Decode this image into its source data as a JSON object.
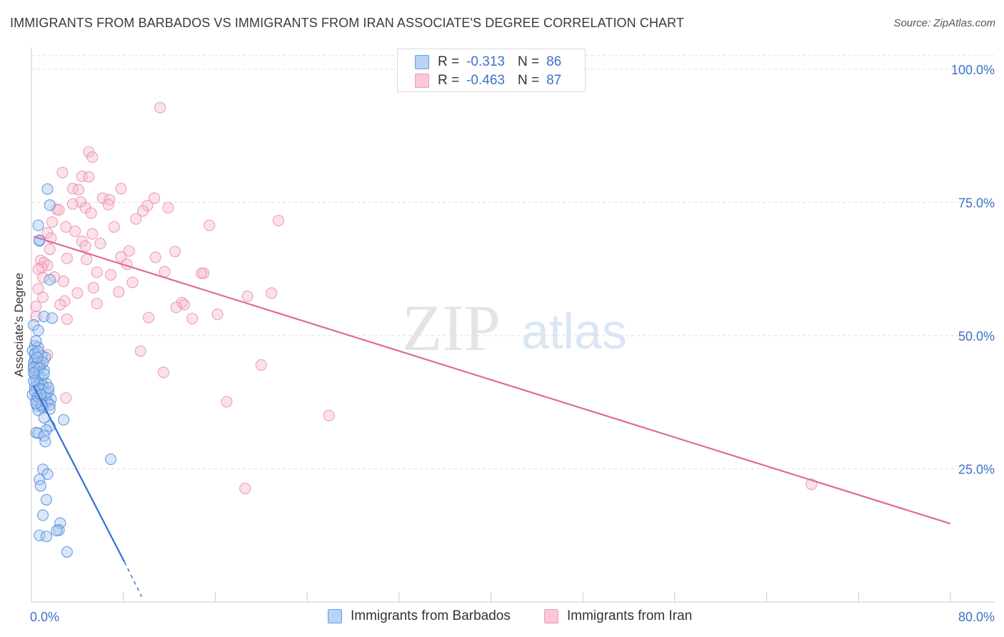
{
  "header": {
    "title": "IMMIGRANTS FROM BARBADOS VS IMMIGRANTS FROM IRAN ASSOCIATE'S DEGREE CORRELATION CHART",
    "source": "Source: ZipAtlas.com"
  },
  "watermark": {
    "zip": "ZIP",
    "atlas": "atlas"
  },
  "colors": {
    "barbados_fill": "#a9c8f0",
    "barbados_stroke": "#4a86d8",
    "barbados_line": "#2f6fd0",
    "iran_fill": "#f7bfd0",
    "iran_stroke": "#e88aa8",
    "iran_line": "#e06b96",
    "tick_label": "#3c73c8",
    "grid": "#dddddd"
  },
  "legend": {
    "rows": [
      {
        "r_label": "R =",
        "r_value": "-0.313",
        "n_label": "N =",
        "n_value": "86"
      },
      {
        "r_label": "R =",
        "r_value": "-0.463",
        "n_label": "N =",
        "n_value": "87"
      }
    ]
  },
  "bottom_legend": {
    "barbados": "Immigrants from Barbados",
    "iran": "Immigrants from Iran"
  },
  "chart_data": {
    "type": "scatter",
    "title": "IMMIGRANTS FROM BARBADOS VS IMMIGRANTS FROM IRAN ASSOCIATE'S DEGREE CORRELATION CHART",
    "ylabel": "Associate's Degree",
    "xlabel": "",
    "xlim": [
      0,
      80
    ],
    "ylim": [
      0,
      100
    ],
    "x_tick_labels": [
      "0.0%",
      "80.0%"
    ],
    "y_ticks": [
      {
        "value": 100,
        "label": "100.0%"
      },
      {
        "value": 75,
        "label": "75.0%"
      },
      {
        "value": 50,
        "label": "50.0%"
      },
      {
        "value": 25,
        "label": "25.0%"
      }
    ],
    "grid": true,
    "series": [
      {
        "name": "Immigrants from Barbados",
        "color": "#4a86d8",
        "r": -0.313,
        "n": 86,
        "trend": {
          "x0": 0.2,
          "y0": 40.5,
          "x1": 8.1,
          "y1": 7.5,
          "dash_to_x": 9.6,
          "dash_to_y": 1.0
        },
        "points": [
          [
            1.4,
            77.5
          ],
          [
            1.6,
            74.5
          ],
          [
            0.6,
            70.7
          ],
          [
            0.7,
            67.8
          ],
          [
            0.7,
            67.9
          ],
          [
            1.6,
            60.5
          ],
          [
            1.1,
            53.6
          ],
          [
            1.8,
            53.3
          ],
          [
            0.2,
            52.0
          ],
          [
            0.6,
            51.0
          ],
          [
            0.3,
            48.1
          ],
          [
            0.6,
            47.8
          ],
          [
            0.1,
            47.2
          ],
          [
            0.9,
            46.2
          ],
          [
            1.2,
            45.9
          ],
          [
            0.3,
            45.5
          ],
          [
            0.2,
            44.9
          ],
          [
            0.5,
            44.8
          ],
          [
            0.8,
            44.5
          ],
          [
            0.5,
            44.2
          ],
          [
            0.2,
            43.8
          ],
          [
            1.1,
            43.5
          ],
          [
            0.4,
            43.2
          ],
          [
            0.3,
            42.6
          ],
          [
            0.6,
            42.3
          ],
          [
            0.9,
            42.0
          ],
          [
            0.4,
            41.6
          ],
          [
            1.3,
            41.0
          ],
          [
            0.6,
            40.9
          ],
          [
            1.0,
            40.6
          ],
          [
            0.3,
            40.3
          ],
          [
            0.5,
            39.9
          ],
          [
            0.9,
            39.8
          ],
          [
            1.5,
            39.5
          ],
          [
            0.1,
            38.9
          ],
          [
            0.6,
            38.5
          ],
          [
            1.2,
            38.4
          ],
          [
            0.9,
            38.2
          ],
          [
            1.7,
            38.1
          ],
          [
            0.4,
            37.8
          ],
          [
            1.4,
            37.6
          ],
          [
            0.8,
            37.2
          ],
          [
            1.6,
            37.0
          ],
          [
            0.5,
            36.8
          ],
          [
            1.0,
            36.5
          ],
          [
            1.6,
            36.2
          ],
          [
            0.6,
            36.0
          ],
          [
            1.1,
            34.6
          ],
          [
            2.8,
            34.2
          ],
          [
            1.6,
            33.0
          ],
          [
            1.3,
            32.3
          ],
          [
            0.4,
            31.8
          ],
          [
            0.6,
            31.7
          ],
          [
            1.1,
            31.2
          ],
          [
            1.2,
            30.1
          ],
          [
            6.9,
            26.8
          ],
          [
            1.0,
            24.9
          ],
          [
            1.4,
            24.0
          ],
          [
            0.7,
            23.0
          ],
          [
            0.8,
            21.8
          ],
          [
            1.3,
            19.2
          ],
          [
            1.0,
            16.3
          ],
          [
            2.5,
            14.8
          ],
          [
            2.4,
            13.5
          ],
          [
            2.2,
            13.4
          ],
          [
            0.7,
            12.5
          ],
          [
            1.3,
            12.3
          ],
          [
            3.1,
            9.4
          ],
          [
            0.2,
            44.1
          ],
          [
            0.3,
            46.6
          ],
          [
            0.8,
            40.0
          ],
          [
            0.5,
            38.6
          ],
          [
            1.0,
            45.0
          ],
          [
            0.4,
            49.0
          ],
          [
            0.7,
            43.9
          ],
          [
            1.3,
            39.2
          ],
          [
            0.2,
            41.5
          ],
          [
            0.9,
            36.9
          ],
          [
            0.6,
            47.0
          ],
          [
            0.3,
            39.6
          ],
          [
            1.1,
            42.8
          ],
          [
            0.5,
            45.9
          ],
          [
            0.8,
            38.9
          ],
          [
            0.2,
            43.0
          ],
          [
            1.5,
            40.2
          ],
          [
            0.4,
            37.3
          ]
        ]
      },
      {
        "name": "Immigrants from Iran",
        "color": "#e88aa8",
        "r": -0.463,
        "n": 87,
        "trend": {
          "x0": 0.2,
          "y0": 68.6,
          "x1": 80.0,
          "y1": 14.7
        },
        "points": [
          [
            11.2,
            92.8
          ],
          [
            5.0,
            84.5
          ],
          [
            5.3,
            83.5
          ],
          [
            2.7,
            80.6
          ],
          [
            4.4,
            79.9
          ],
          [
            5.0,
            79.8
          ],
          [
            7.8,
            77.6
          ],
          [
            3.6,
            77.6
          ],
          [
            4.1,
            77.4
          ],
          [
            6.2,
            75.8
          ],
          [
            10.7,
            75.8
          ],
          [
            6.8,
            75.5
          ],
          [
            4.3,
            75.1
          ],
          [
            3.6,
            74.7
          ],
          [
            6.7,
            74.6
          ],
          [
            10.1,
            74.4
          ],
          [
            11.9,
            74.0
          ],
          [
            4.7,
            74.0
          ],
          [
            2.2,
            73.7
          ],
          [
            2.4,
            73.6
          ],
          [
            9.7,
            73.4
          ],
          [
            5.2,
            73.0
          ],
          [
            21.5,
            71.6
          ],
          [
            1.8,
            71.3
          ],
          [
            15.5,
            70.7
          ],
          [
            3.0,
            70.4
          ],
          [
            1.4,
            69.3
          ],
          [
            5.3,
            69.1
          ],
          [
            1.7,
            68.3
          ],
          [
            4.4,
            67.7
          ],
          [
            4.7,
            66.8
          ],
          [
            8.5,
            65.9
          ],
          [
            7.8,
            64.8
          ],
          [
            10.8,
            64.7
          ],
          [
            3.1,
            64.5
          ],
          [
            4.8,
            64.3
          ],
          [
            0.8,
            64.1
          ],
          [
            1.1,
            63.7
          ],
          [
            1.4,
            63.2
          ],
          [
            8.3,
            63.4
          ],
          [
            0.9,
            62.8
          ],
          [
            0.6,
            62.5
          ],
          [
            11.6,
            62.0
          ],
          [
            15.0,
            61.7
          ],
          [
            14.8,
            61.7
          ],
          [
            5.7,
            61.9
          ],
          [
            6.9,
            61.4
          ],
          [
            1.0,
            60.9
          ],
          [
            2.8,
            60.2
          ],
          [
            5.4,
            59.0
          ],
          [
            0.6,
            58.8
          ],
          [
            7.6,
            58.2
          ],
          [
            20.9,
            58.0
          ],
          [
            18.8,
            57.4
          ],
          [
            2.9,
            56.5
          ],
          [
            13.1,
            56.2
          ],
          [
            13.3,
            55.8
          ],
          [
            5.7,
            56.0
          ],
          [
            2.5,
            55.8
          ],
          [
            12.6,
            55.3
          ],
          [
            16.2,
            54.0
          ],
          [
            10.2,
            53.4
          ],
          [
            14.0,
            53.2
          ],
          [
            0.4,
            53.6
          ],
          [
            3.1,
            53.1
          ],
          [
            0.3,
            46.5
          ],
          [
            1.4,
            46.4
          ],
          [
            9.5,
            47.1
          ],
          [
            0.6,
            44.4
          ],
          [
            20.0,
            44.5
          ],
          [
            11.5,
            43.1
          ],
          [
            3.0,
            38.3
          ],
          [
            17.0,
            37.6
          ],
          [
            25.9,
            35.0
          ],
          [
            67.9,
            22.1
          ],
          [
            18.6,
            21.3
          ],
          [
            0.4,
            55.5
          ],
          [
            1.0,
            57.2
          ],
          [
            2.0,
            61.0
          ],
          [
            6.0,
            67.3
          ],
          [
            3.8,
            69.6
          ],
          [
            9.1,
            71.9
          ],
          [
            12.5,
            65.8
          ],
          [
            4.0,
            58.0
          ],
          [
            7.2,
            70.4
          ],
          [
            1.6,
            66.2
          ],
          [
            8.8,
            60.0
          ]
        ]
      }
    ]
  }
}
